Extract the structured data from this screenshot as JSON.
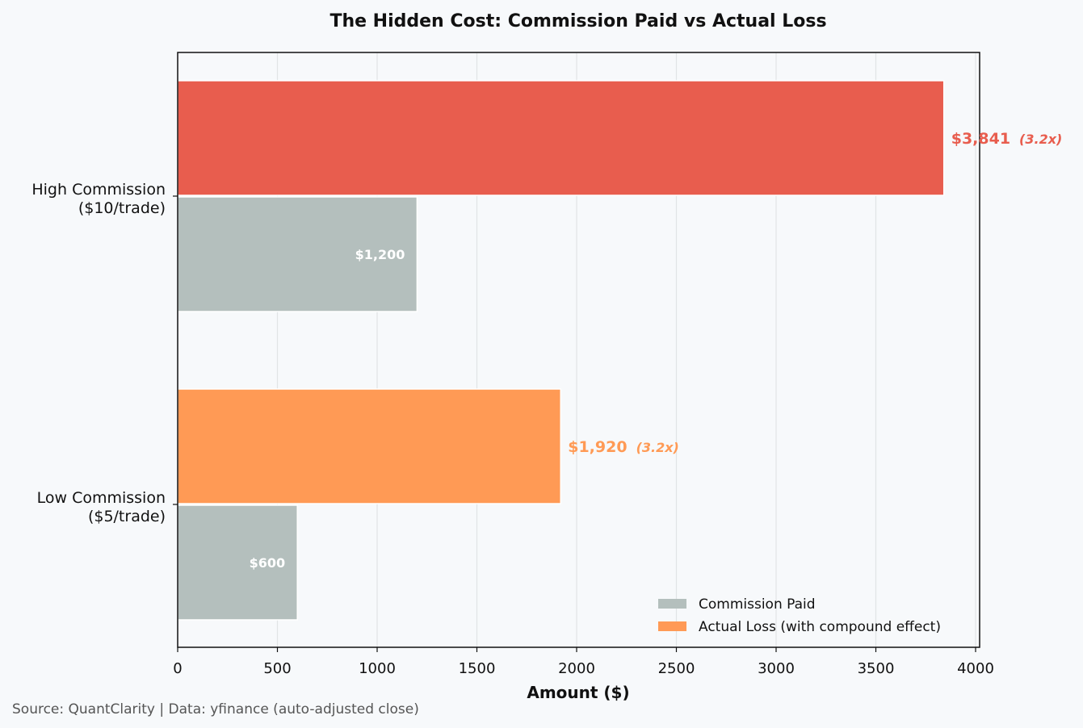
{
  "chart_data": {
    "type": "bar",
    "orientation": "horizontal",
    "title": "The Hidden Cost: Commission Paid vs Actual Loss",
    "xlabel": "Amount ($)",
    "ylabel": "",
    "xlim": [
      0,
      4000
    ],
    "xticks": [
      0,
      500,
      1000,
      1500,
      2000,
      2500,
      3000,
      3500,
      4000
    ],
    "xtick_labels": [
      "0",
      "500",
      "1000",
      "1500",
      "2000",
      "2500",
      "3000",
      "3500",
      "4000"
    ],
    "grid": "vertical",
    "legend_position": "bottom-right",
    "categories": [
      {
        "lines": [
          "High Commission",
          "($10/trade)"
        ]
      },
      {
        "lines": [
          "Low Commission",
          "($5/trade)"
        ]
      }
    ],
    "series": [
      {
        "name": "Commission Paid",
        "color": "#b4bfbd",
        "values": [
          1200,
          600
        ],
        "labels": [
          "$1,200",
          "$600"
        ]
      },
      {
        "name": "Actual Loss (with compound effect)",
        "legend_color": "#ff9a55",
        "colors": [
          "#e85d4e",
          "#ff9a55"
        ],
        "values": [
          3841,
          1920
        ],
        "labels": [
          "$3,841",
          "$1,920"
        ],
        "ratio_labels": [
          "(3.2x)",
          "(3.2x)"
        ]
      }
    ]
  },
  "footer": {
    "source": "Source: QuantClarity | Data: yfinance (auto-adjusted close)"
  }
}
